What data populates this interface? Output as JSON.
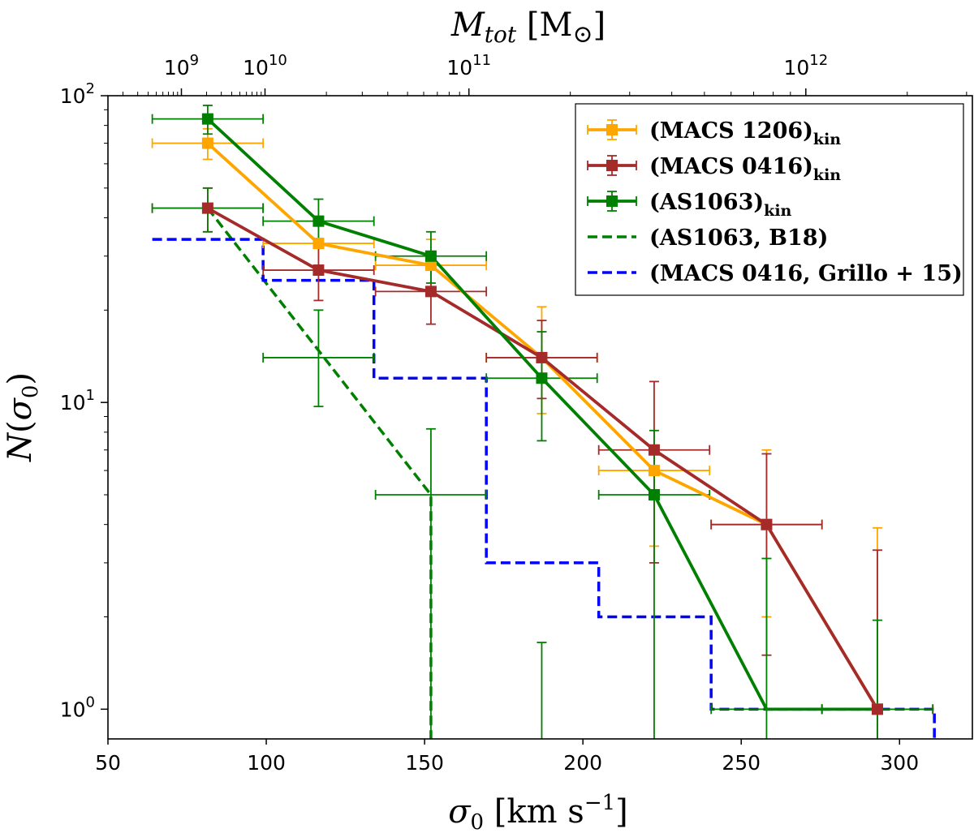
{
  "chart_data": {
    "type": "line",
    "xlabel": "σ0 [km s−1]",
    "ylabel": "N(σ0)",
    "top_xlabel": "Mtot [M⊙]",
    "xlim": [
      50,
      323
    ],
    "ylim": [
      0.8,
      100
    ],
    "yscale": "log",
    "x_ticks": [
      50,
      100,
      150,
      200,
      250,
      300
    ],
    "y_ticks": [
      {
        "value": 1,
        "base": "10",
        "exp": "0"
      },
      {
        "value": 10,
        "base": "10",
        "exp": "1"
      },
      {
        "value": 100,
        "base": "10",
        "exp": "2"
      }
    ],
    "top_ticks": [
      {
        "sigma": 73.2,
        "base": "10",
        "exp": "9"
      },
      {
        "sigma": 99.6,
        "base": "10",
        "exp": "10"
      },
      {
        "sigma": 164.0,
        "base": "10",
        "exp": "11"
      },
      {
        "sigma": 270.4,
        "base": "10",
        "exp": "12"
      }
    ],
    "series": [
      {
        "name": "(MACS 1206)kin",
        "label_main": "(MACS 1206)",
        "label_sub": "kin",
        "color": "#ffa500",
        "style": "solid",
        "points": [
          {
            "x": 81.5,
            "y": 70,
            "xerr": 17.5,
            "ylo": 62,
            "yhi": 78
          },
          {
            "x": 116.5,
            "y": 33,
            "xerr": 17.5,
            "ylo": 27.5,
            "yhi": 39
          },
          {
            "x": 152,
            "y": 28,
            "xerr": 17.5,
            "ylo": 22.7,
            "yhi": 34
          },
          {
            "x": 187,
            "y": 14,
            "xerr": 17.5,
            "ylo": 9.2,
            "yhi": 20.5
          },
          {
            "x": 222.5,
            "y": 6,
            "xerr": 17.5,
            "ylo": 3.4,
            "yhi": 7.2
          },
          {
            "x": 258,
            "y": 4,
            "xerr": 17.5,
            "ylo": 2,
            "yhi": 7
          },
          {
            "x": 293,
            "y": 1,
            "xerr": 17.5,
            "ylo": 0.79,
            "yhi": 3.9
          }
        ]
      },
      {
        "name": "(MACS 0416)kin",
        "label_main": "(MACS 0416)",
        "label_sub": "kin",
        "color": "#a52a2a",
        "style": "solid",
        "points": [
          {
            "x": 81.5,
            "y": 43,
            "xerr": 17.5,
            "ylo": 36,
            "yhi": 50
          },
          {
            "x": 116.5,
            "y": 27,
            "xerr": 17.5,
            "ylo": 21.5,
            "yhi": 32.5
          },
          {
            "x": 152,
            "y": 23,
            "xerr": 17.5,
            "ylo": 18,
            "yhi": 28.5
          },
          {
            "x": 187,
            "y": 14,
            "xerr": 17.5,
            "ylo": 10.3,
            "yhi": 18.5
          },
          {
            "x": 222.5,
            "y": 7,
            "xerr": 17.5,
            "ylo": 3,
            "yhi": 11.7
          },
          {
            "x": 258,
            "y": 4,
            "xerr": 17.5,
            "ylo": 1.5,
            "yhi": 6.8
          },
          {
            "x": 293,
            "y": 1,
            "xerr": 17.5,
            "ylo": 0.79,
            "yhi": 3.3
          }
        ]
      },
      {
        "name": "(AS1063)kin",
        "label_main": "(AS1063)",
        "label_sub": "kin",
        "color": "#008000",
        "style": "solid",
        "points": [
          {
            "x": 81.5,
            "y": 84,
            "xerr": 17.5,
            "ylo": 75,
            "yhi": 93
          },
          {
            "x": 116.5,
            "y": 39,
            "xerr": 17.5,
            "ylo": 32.5,
            "yhi": 46
          },
          {
            "x": 152,
            "y": 30,
            "xerr": 17.5,
            "ylo": 24.5,
            "yhi": 36
          },
          {
            "x": 187,
            "y": 12,
            "xerr": 17.5,
            "ylo": 7.5,
            "yhi": 17
          },
          {
            "x": 222.5,
            "y": 5,
            "xerr": 17.5,
            "ylo": 0.79,
            "yhi": 8.1
          },
          {
            "x": 258,
            "y": 1,
            "xerr": 17.5,
            "ylo": 0.79,
            "yhi": 3.1,
            "nomarker": true
          },
          {
            "x": 293,
            "y": 1,
            "xerr": 17.5,
            "ylo": 0.79,
            "yhi": 1.95,
            "nomarker": true
          }
        ]
      },
      {
        "name": "AS1063 kin extra points",
        "color": "#008000",
        "style": "errorbar-only",
        "legend": false,
        "points": [
          {
            "x": 81.5,
            "y": 43,
            "xerr": 17.5,
            "ylo": 36,
            "yhi": 50
          },
          {
            "x": 116.5,
            "y": 14,
            "xerr": 17.5,
            "ylo": 9.7,
            "yhi": 20
          },
          {
            "x": 152,
            "y": 5,
            "xerr": 17.5,
            "ylo": 0.79,
            "yhi": 8.2
          },
          {
            "x": 187,
            "y": 1,
            "xerr": 0,
            "ylo": 0.79,
            "yhi": 1.65
          }
        ]
      },
      {
        "name": "(AS1063, B18)",
        "label_main": "(AS1063, B18)",
        "color": "#008000",
        "style": "dashed",
        "x": [
          81.5,
          152,
          152
        ],
        "y": [
          43,
          5,
          0.79
        ]
      },
      {
        "name": "(MACS 0416, Grillo + 15)",
        "label_main": "(MACS 0416, Grillo + 15)",
        "color": "#0000ff",
        "style": "dashed-step",
        "x": [
          64,
          99,
          99,
          134,
          134,
          169.5,
          169.5,
          205,
          205,
          240.5,
          240.5,
          311,
          311
        ],
        "y": [
          34,
          34,
          25,
          25,
          12,
          12,
          3,
          3,
          2,
          2,
          1,
          1,
          0.79
        ]
      }
    ]
  }
}
